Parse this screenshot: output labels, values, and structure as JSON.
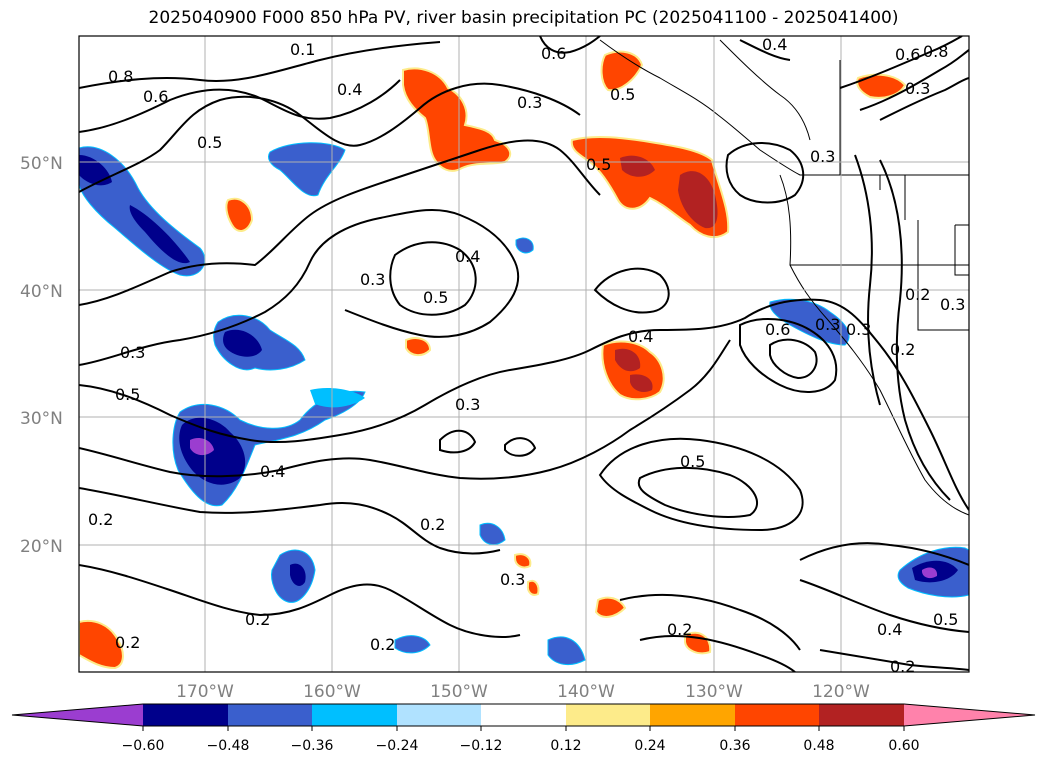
{
  "title": "2025040900 F000 850 hPa PV, river basin precipitation PC (2025041100 - 2025041400)",
  "map": {
    "lat_labels": [
      "50°N",
      "40°N",
      "30°N",
      "20°N"
    ],
    "lon_labels": [
      "170°W",
      "160°W",
      "150°W",
      "140°W",
      "130°W",
      "120°W"
    ],
    "grid": true
  },
  "contour_labels": [
    "0.1",
    "0.8",
    "0.6",
    "0.4",
    "0.5",
    "0.6",
    "0.3",
    "0.4",
    "0.6",
    "0.8",
    "0.3",
    "0.5",
    "0.3",
    "0.4",
    "0.5",
    "0.3",
    "0.4",
    "0.6",
    "0.5",
    "0.3",
    "0.2",
    "0.3",
    "0.2",
    "0.3",
    "0.5",
    "0.3",
    "0.4",
    "0.5",
    "0.2",
    "0.2",
    "0.3",
    "0.2",
    "0.2",
    "0.2",
    "0.4",
    "0.5",
    "0.2",
    "0.2",
    "0.3"
  ],
  "colorbar": {
    "colors": [
      "#9b3dd0",
      "#00008b",
      "#3a5fcd",
      "#00bfff",
      "#b0e2ff",
      "#ffffff",
      "#fdeb8a",
      "#ffa500",
      "#ff4500",
      "#b22222",
      "#ff82ab"
    ],
    "tick_labels": [
      "−0.60",
      "−0.48",
      "−0.36",
      "−0.24",
      "−0.12",
      "0.12",
      "0.24",
      "0.36",
      "0.48",
      "0.60"
    ]
  },
  "colors": {
    "purple": "#9b3dd0",
    "navy": "#00008b",
    "blue": "#3a5fcd",
    "cyan": "#00bfff",
    "lightblue": "#b0e2ff",
    "yellow": "#fdeb8a",
    "orange": "#ffa500",
    "redorange": "#ff4500",
    "darkred": "#b22222",
    "pink": "#ff82ab",
    "gridline": "#b0b0b0"
  }
}
